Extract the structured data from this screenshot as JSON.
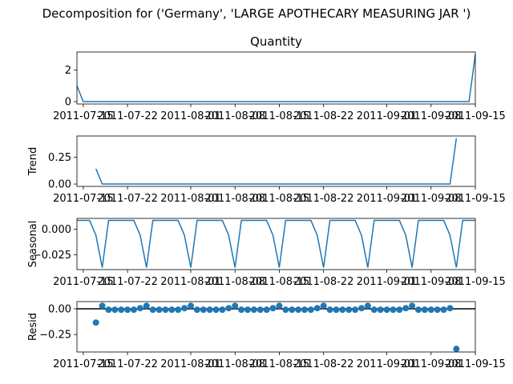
{
  "suptitle": "Decomposition for ('Germany', 'LARGE APOTHECARY MEASURING JAR ')",
  "chart_data": [
    {
      "type": "line",
      "title": "Quantity",
      "ylabel": "",
      "x_start": "2011-07-14",
      "x_end": "2011-09-15",
      "xlim": [
        "2011-07-14",
        "2011-09-15"
      ],
      "ylim": [
        -0.15,
        3.15
      ],
      "yticks": [
        {
          "value": 0,
          "label": "0"
        },
        {
          "value": 2,
          "label": "2"
        }
      ],
      "xticks": [
        {
          "value": "2011-07-15",
          "label": "2011-07-15"
        },
        {
          "value": "2011-07-22",
          "label": "2011-07-22"
        },
        {
          "value": "2011-08-01",
          "label": "2011-08-01"
        },
        {
          "value": "2011-08-08",
          "label": "2011-08-08"
        },
        {
          "value": "2011-08-15",
          "label": "2011-08-15"
        },
        {
          "value": "2011-08-22",
          "label": "2011-08-22"
        },
        {
          "value": "2011-09-01",
          "label": "2011-09-01"
        },
        {
          "value": "2011-09-08",
          "label": "2011-09-08"
        },
        {
          "value": "2011-09-15",
          "label": "2011-09-15"
        }
      ],
      "series": [
        {
          "values": [
            1,
            0,
            0,
            0,
            0,
            0,
            0,
            0,
            0,
            0,
            0,
            0,
            0,
            0,
            0,
            0,
            0,
            0,
            0,
            0,
            0,
            0,
            0,
            0,
            0,
            0,
            0,
            0,
            0,
            0,
            0,
            0,
            0,
            0,
            0,
            0,
            0,
            0,
            0,
            0,
            0,
            0,
            0,
            0,
            0,
            0,
            0,
            0,
            0,
            0,
            0,
            0,
            0,
            0,
            0,
            0,
            0,
            0,
            0,
            0,
            0,
            0,
            0,
            3
          ]
        }
      ]
    },
    {
      "type": "line",
      "title": "",
      "ylabel": "Trend",
      "x_start": "2011-07-14",
      "x_end": "2011-09-15",
      "xlim": [
        "2011-07-14",
        "2011-09-15"
      ],
      "ylim": [
        -0.022,
        0.45
      ],
      "yticks": [
        {
          "value": 0,
          "label": "0.00"
        },
        {
          "value": 0.25,
          "label": "0.25"
        }
      ],
      "xticks": [
        {
          "value": "2011-07-15",
          "label": "2011-07-15"
        },
        {
          "value": "2011-07-22",
          "label": "2011-07-22"
        },
        {
          "value": "2011-08-01",
          "label": "2011-08-01"
        },
        {
          "value": "2011-08-08",
          "label": "2011-08-08"
        },
        {
          "value": "2011-08-15",
          "label": "2011-08-15"
        },
        {
          "value": "2011-08-22",
          "label": "2011-08-22"
        },
        {
          "value": "2011-09-01",
          "label": "2011-09-01"
        },
        {
          "value": "2011-09-08",
          "label": "2011-09-08"
        },
        {
          "value": "2011-09-15",
          "label": "2011-09-15"
        }
      ],
      "series": [
        {
          "values": [
            null,
            null,
            null,
            0.143,
            0,
            0,
            0,
            0,
            0,
            0,
            0,
            0,
            0,
            0,
            0,
            0,
            0,
            0,
            0,
            0,
            0,
            0,
            0,
            0,
            0,
            0,
            0,
            0,
            0,
            0,
            0,
            0,
            0,
            0,
            0,
            0,
            0,
            0,
            0,
            0,
            0,
            0,
            0,
            0,
            0,
            0,
            0,
            0,
            0,
            0,
            0,
            0,
            0,
            0,
            0,
            0,
            0,
            0,
            0,
            0,
            0.429,
            null,
            null,
            null
          ]
        }
      ]
    },
    {
      "type": "line",
      "title": "",
      "ylabel": "Seasonal",
      "x_start": "2011-07-14",
      "x_end": "2011-09-15",
      "xlim": [
        "2011-07-14",
        "2011-09-15"
      ],
      "ylim": [
        -0.0395,
        0.0105
      ],
      "yticks": [
        {
          "value": 0,
          "label": "0.000"
        },
        {
          "value": -0.025,
          "label": "−0.025"
        }
      ],
      "xticks": [
        {
          "value": "2011-07-15",
          "label": "2011-07-15"
        },
        {
          "value": "2011-07-22",
          "label": "2011-07-22"
        },
        {
          "value": "2011-08-01",
          "label": "2011-08-01"
        },
        {
          "value": "2011-08-08",
          "label": "2011-08-08"
        },
        {
          "value": "2011-08-15",
          "label": "2011-08-15"
        },
        {
          "value": "2011-08-22",
          "label": "2011-08-22"
        },
        {
          "value": "2011-09-01",
          "label": "2011-09-01"
        },
        {
          "value": "2011-09-08",
          "label": "2011-09-08"
        },
        {
          "value": "2011-09-15",
          "label": "2011-09-15"
        }
      ],
      "series": [
        {
          "values": [
            0.0085,
            0.0085,
            0.0085,
            -0.006,
            -0.0375,
            0.0085,
            0.0085,
            0.0085,
            0.0085,
            0.0085,
            -0.006,
            -0.0375,
            0.0085,
            0.0085,
            0.0085,
            0.0085,
            0.0085,
            -0.006,
            -0.0375,
            0.0085,
            0.0085,
            0.0085,
            0.0085,
            0.0085,
            -0.006,
            -0.0375,
            0.0085,
            0.0085,
            0.0085,
            0.0085,
            0.0085,
            -0.006,
            -0.0375,
            0.0085,
            0.0085,
            0.0085,
            0.0085,
            0.0085,
            -0.006,
            -0.0375,
            0.0085,
            0.0085,
            0.0085,
            0.0085,
            0.0085,
            -0.006,
            -0.0375,
            0.0085,
            0.0085,
            0.0085,
            0.0085,
            0.0085,
            -0.006,
            -0.0375,
            0.0085,
            0.0085,
            0.0085,
            0.0085,
            0.0085,
            -0.006,
            -0.0375,
            0.0085,
            0.0085,
            0.0085
          ]
        }
      ]
    },
    {
      "type": "scatter",
      "title": "",
      "ylabel": "Resid",
      "x_start": "2011-07-14",
      "x_end": "2011-09-15",
      "xlim": [
        "2011-07-14",
        "2011-09-15"
      ],
      "ylim": [
        -0.42,
        0.07
      ],
      "yticks": [
        {
          "value": 0,
          "label": "0.00"
        },
        {
          "value": -0.25,
          "label": "−0.25"
        }
      ],
      "xticks": [
        {
          "value": "2011-07-15",
          "label": "2011-07-15"
        },
        {
          "value": "2011-07-22",
          "label": "2011-07-22"
        },
        {
          "value": "2011-08-01",
          "label": "2011-08-01"
        },
        {
          "value": "2011-08-08",
          "label": "2011-08-08"
        },
        {
          "value": "2011-08-15",
          "label": "2011-08-15"
        },
        {
          "value": "2011-08-22",
          "label": "2011-08-22"
        },
        {
          "value": "2011-09-01",
          "label": "2011-09-01"
        },
        {
          "value": "2011-09-08",
          "label": "2011-09-08"
        },
        {
          "value": "2011-09-15",
          "label": "2011-09-15"
        }
      ],
      "zero_line": true,
      "series": [
        {
          "values": [
            null,
            null,
            null,
            -0.134,
            0.029,
            -0.009,
            -0.009,
            -0.009,
            -0.009,
            -0.009,
            0.006,
            0.029,
            -0.009,
            -0.009,
            -0.009,
            -0.009,
            -0.009,
            0.006,
            0.029,
            -0.009,
            -0.009,
            -0.009,
            -0.009,
            -0.009,
            0.006,
            0.029,
            -0.009,
            -0.009,
            -0.009,
            -0.009,
            -0.009,
            0.006,
            0.029,
            -0.009,
            -0.009,
            -0.009,
            -0.009,
            -0.009,
            0.006,
            0.029,
            -0.009,
            -0.009,
            -0.009,
            -0.009,
            -0.009,
            0.006,
            0.029,
            -0.009,
            -0.009,
            -0.009,
            -0.009,
            -0.009,
            0.006,
            0.029,
            -0.009,
            -0.009,
            -0.009,
            -0.009,
            -0.009,
            0.006,
            -0.39,
            null,
            null,
            null
          ]
        }
      ]
    }
  ],
  "colors": {
    "line": "#1f77b4",
    "marker": "#1f77b4",
    "zero_line": "#000000",
    "axes": "#000000"
  }
}
